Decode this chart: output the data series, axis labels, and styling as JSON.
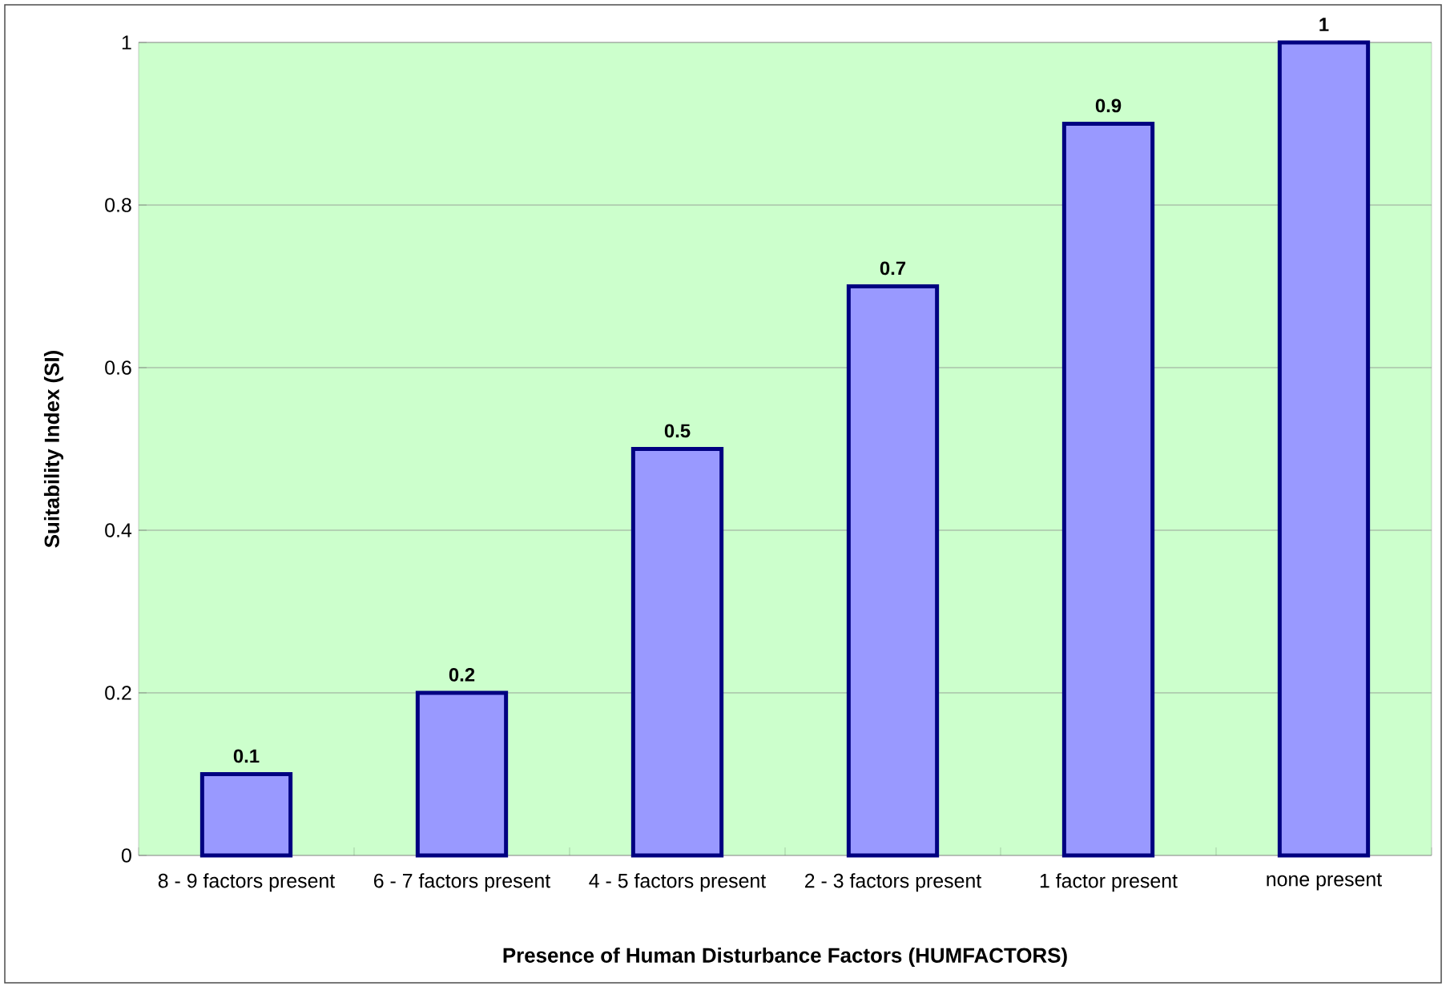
{
  "chart_data": {
    "type": "bar",
    "xlabel": "Presence of Human Disturbance Factors (HUMFACTORS)",
    "ylabel": "Suitability Index (SI)",
    "categories": [
      "8 - 9 factors present",
      "6 - 7 factors present",
      "4 - 5 factors present",
      "2 - 3 factors present",
      "1 factor present",
      "none present"
    ],
    "values": [
      0.1,
      0.2,
      0.5,
      0.7,
      0.9,
      1
    ],
    "color": "#9999ff",
    "ylim": [
      0,
      1
    ],
    "yticks": [
      0,
      0.2,
      0.4,
      0.6,
      0.8,
      1
    ],
    "grid": "y",
    "data_labels": true
  }
}
